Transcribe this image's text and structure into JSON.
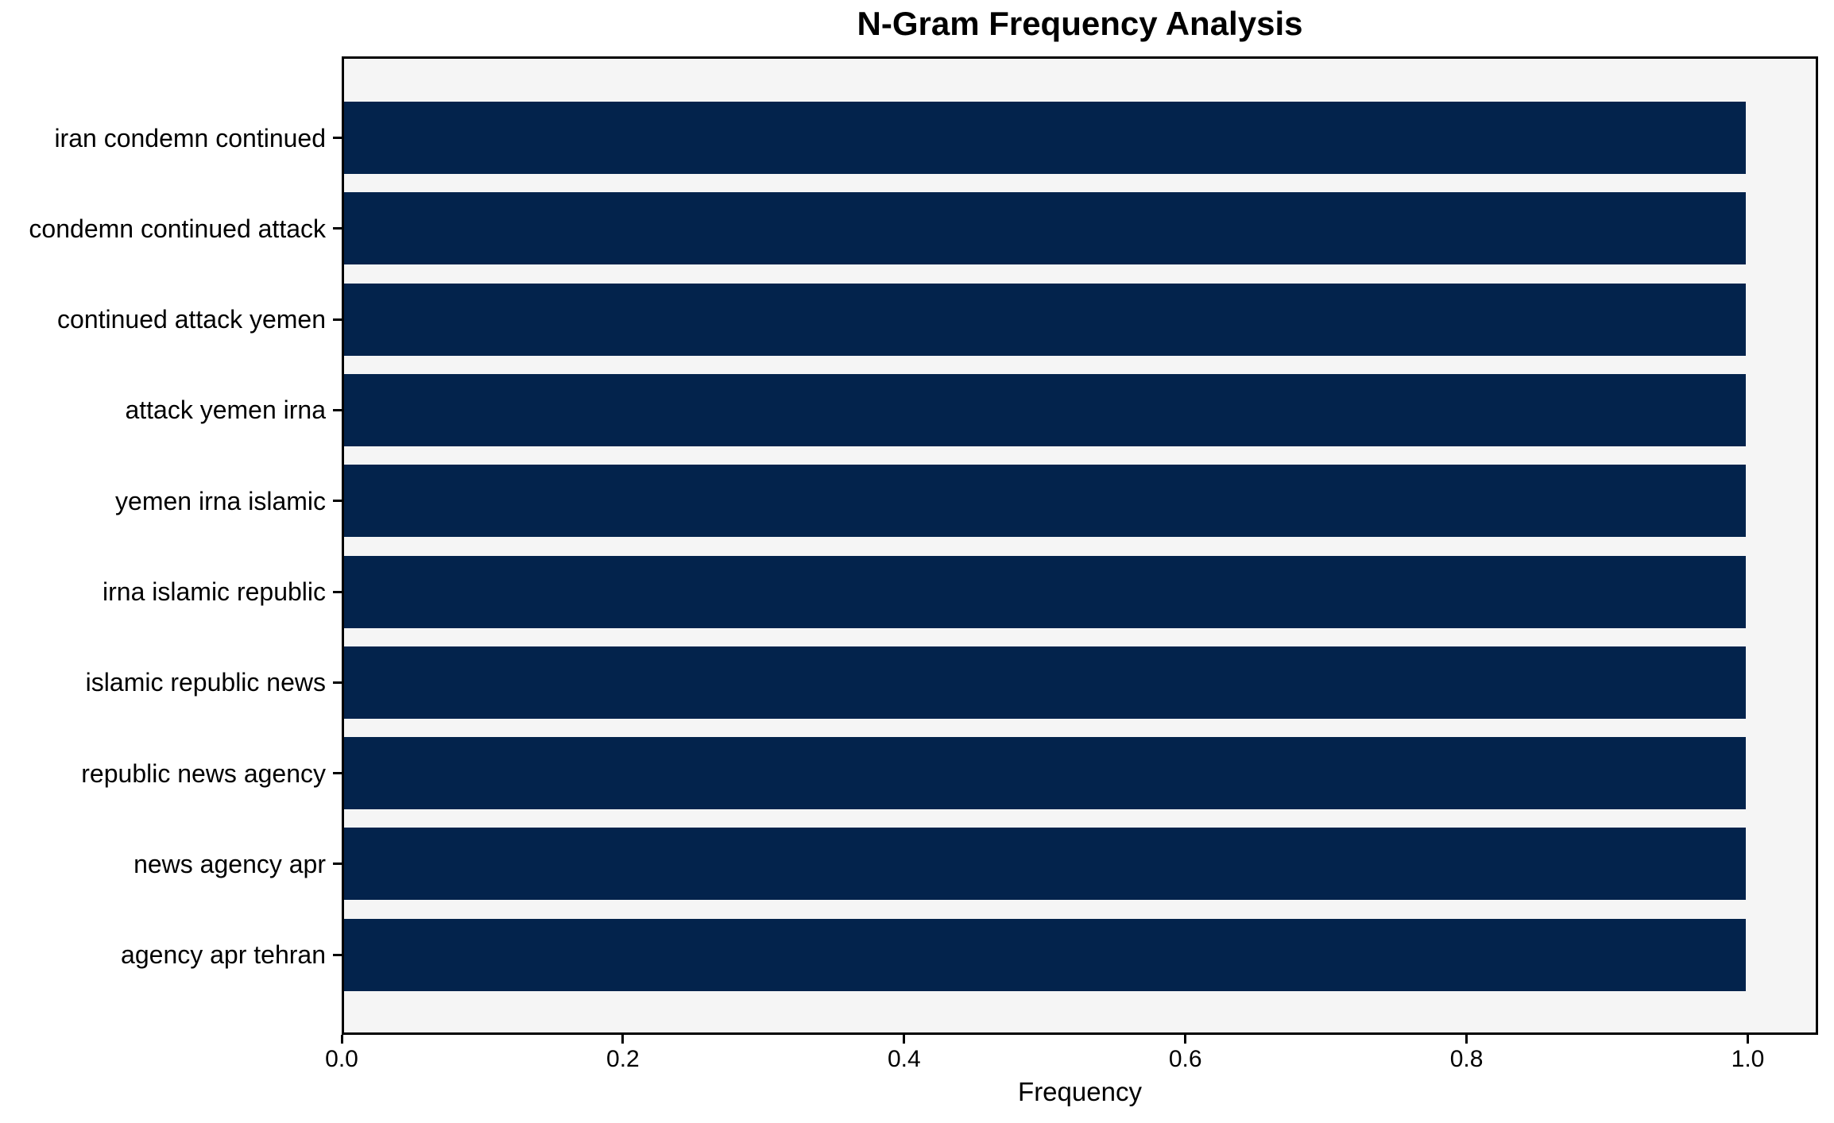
{
  "chart_data": {
    "type": "bar",
    "orientation": "horizontal",
    "title": "N-Gram Frequency Analysis",
    "xlabel": "Frequency",
    "ylabel": "",
    "categories": [
      "iran condemn continued",
      "condemn continued attack",
      "continued attack yemen",
      "attack yemen irna",
      "yemen irna islamic",
      "irna islamic republic",
      "islamic republic news",
      "republic news agency",
      "news agency apr",
      "agency apr tehran"
    ],
    "values": [
      1.0,
      1.0,
      1.0,
      1.0,
      1.0,
      1.0,
      1.0,
      1.0,
      1.0,
      1.0
    ],
    "xlim": [
      0,
      1.05
    ],
    "xticks": [
      "0.0",
      "0.2",
      "0.4",
      "0.6",
      "0.8",
      "1.0"
    ],
    "xtick_values": [
      0.0,
      0.2,
      0.4,
      0.6,
      0.8,
      1.0
    ],
    "grid": false,
    "legend_position": "none",
    "colors": {
      "bar": "#03234c",
      "plot_background": "#f5f5f5",
      "figure_background": "#ffffff",
      "spine": "#000000",
      "text": "#000000"
    }
  }
}
